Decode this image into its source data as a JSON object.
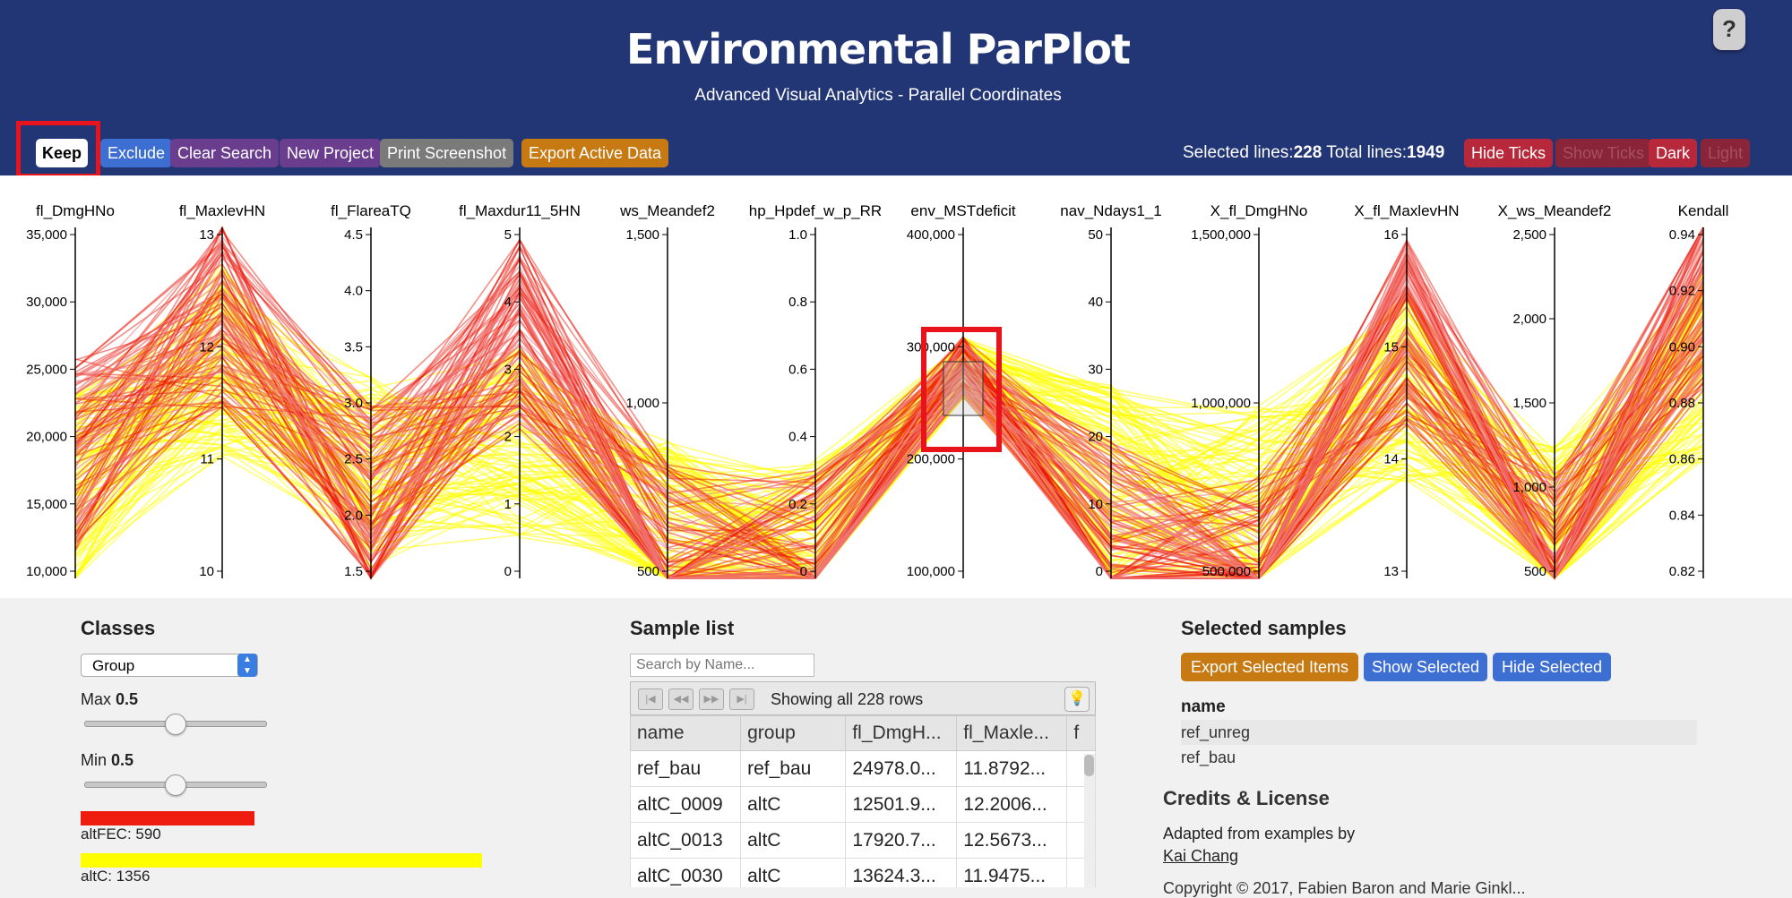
{
  "header": {
    "title": "Environmental ParPlot",
    "subtitle": "Advanced Visual Analytics - Parallel Coordinates",
    "help_label": "?",
    "background": "#223574"
  },
  "toolbar": {
    "buttons": [
      {
        "name": "keep-button",
        "label": "Keep",
        "color": "#ffffff"
      },
      {
        "name": "exclude-button",
        "label": "Exclude",
        "color": "#3d6fd2"
      },
      {
        "name": "clear-search-button",
        "label": "Clear Search",
        "color": "#6a3d8e"
      },
      {
        "name": "new-project-button",
        "label": "New Project",
        "color": "#6a3d8e"
      },
      {
        "name": "print-screenshot-button",
        "label": "Print Screenshot",
        "color": "#7a7a7a"
      },
      {
        "name": "export-active-data-button",
        "label": "Export Active Data",
        "color": "#c77a12"
      }
    ],
    "stats": {
      "selected_label": "Selected lines:",
      "selected_value": "228",
      "total_label": "Total lines:",
      "total_value": "1949"
    },
    "right_buttons": [
      {
        "name": "hide-ticks-button",
        "label": "Hide Ticks",
        "color": "#b7293a",
        "disabled": false
      },
      {
        "name": "show-ticks-button",
        "label": "Show Ticks",
        "color": "#8a2438",
        "disabled": true
      },
      {
        "name": "dark-button",
        "label": "Dark",
        "color": "#b7293a",
        "disabled": false
      },
      {
        "name": "light-button",
        "label": "Light",
        "color": "#8a2438",
        "disabled": true
      }
    ]
  },
  "chart_data": {
    "type": "parallel-coordinates",
    "axes": [
      {
        "name": "fl_DmgHNo",
        "ticks": [
          "35,000",
          "30,000",
          "25,000",
          "20,000",
          "15,000",
          "10,000"
        ]
      },
      {
        "name": "fl_MaxlevHN",
        "ticks": [
          "13",
          "12",
          "11",
          "10"
        ]
      },
      {
        "name": "fl_FlareaTQ",
        "ticks": [
          "4.5",
          "4.0",
          "3.5",
          "3.0",
          "2.5",
          "2.0",
          "1.5"
        ]
      },
      {
        "name": "fl_Maxdur11_5HN",
        "ticks": [
          "5",
          "4",
          "3",
          "2",
          "1",
          "0"
        ]
      },
      {
        "name": "ws_Meandef2",
        "ticks": [
          "1,500",
          "1,000",
          "500"
        ]
      },
      {
        "name": "hp_Hpdef_w_p_RR",
        "ticks": [
          "1.0",
          "0.8",
          "0.6",
          "0.4",
          "0.2",
          "0"
        ]
      },
      {
        "name": "env_MSTdeficit",
        "ticks": [
          "400,000",
          "300,000",
          "200,000",
          "100,000"
        ]
      },
      {
        "name": "nav_Ndays1_1",
        "ticks": [
          "50",
          "40",
          "30",
          "20",
          "10",
          "0"
        ]
      },
      {
        "name": "X_fl_DmgHNo",
        "ticks": [
          "1,500,000",
          "1,000,000",
          "500,000"
        ]
      },
      {
        "name": "X_fl_MaxlevHN",
        "ticks": [
          "16",
          "15",
          "14",
          "13"
        ]
      },
      {
        "name": "X_ws_Meandef2",
        "ticks": [
          "2,500",
          "2,000",
          "1,500",
          "1,000",
          "500"
        ]
      },
      {
        "name": "Kendall",
        "ticks": [
          "0.94",
          "0.92",
          "0.90",
          "0.88",
          "0.86",
          "0.84",
          "0.82"
        ]
      }
    ],
    "series": [
      {
        "name": "altFEC",
        "color": "#ee1c0e",
        "count": 590
      },
      {
        "name": "altC",
        "color": "#ffff00",
        "count": 1356
      }
    ],
    "brush": {
      "axis": "env_MSTdeficit",
      "range": [
        230000,
        290000
      ]
    }
  },
  "classes": {
    "title": "Classes",
    "select_value": "Group",
    "max_label": "Max",
    "max_value": "0.5",
    "min_label": "Min",
    "min_value": "0.5",
    "items": [
      {
        "label": "altFEC: 590",
        "color": "#ee1c0e",
        "fraction": 0.302
      },
      {
        "label": "altC: 1356",
        "color": "#ffff00",
        "fraction": 0.696
      }
    ]
  },
  "sample_list": {
    "title": "Sample list",
    "search_placeholder": "Search by Name...",
    "pager_text": "Showing all 228 rows",
    "columns": [
      "name",
      "group",
      "fl_DmgH...",
      "fl_Maxle...",
      "f"
    ],
    "rows": [
      [
        "ref_bau",
        "ref_bau",
        "24978.0...",
        "11.8792..."
      ],
      [
        "altC_0009",
        "altC",
        "12501.9...",
        "12.2006..."
      ],
      [
        "altC_0013",
        "altC",
        "17920.7...",
        "12.5673..."
      ],
      [
        "altC_0030",
        "altC",
        "13624.3...",
        "11.9475..."
      ]
    ]
  },
  "selected_samples": {
    "title": "Selected samples",
    "buttons": [
      {
        "label": "Export Selected Items",
        "color": "#c77a12"
      },
      {
        "label": "Show Selected",
        "color": "#3d6fd2"
      },
      {
        "label": "Hide Selected",
        "color": "#3d6fd2"
      }
    ],
    "column": "name",
    "rows": [
      "ref_unreg",
      "ref_bau"
    ]
  },
  "credits": {
    "title": "Credits & License",
    "text": "Adapted from examples by",
    "link": "Kai Chang",
    "copyright": "Copyright © 2017, Fabien Baron and Marie Ginkl..."
  }
}
